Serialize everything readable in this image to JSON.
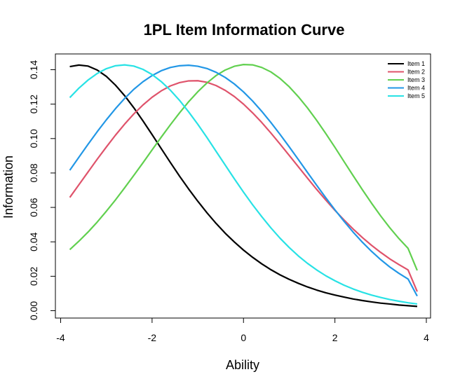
{
  "chart_data": {
    "type": "line",
    "title": "1PL Item Information Curve",
    "xlabel": "Ability",
    "ylabel": "Information",
    "xlim": [
      -4,
      4
    ],
    "ylim": [
      0,
      0.145
    ],
    "xticks": [
      -4,
      -2,
      0,
      2,
      4
    ],
    "xtick_labels": [
      "-4",
      "-2",
      "0",
      "2",
      "4"
    ],
    "yticks": [
      0,
      0.02,
      0.04,
      0.06,
      0.08,
      0.1,
      0.12,
      0.14
    ],
    "ytick_labels": [
      "0.00",
      "0.02",
      "0.04",
      "0.06",
      "0.08",
      "0.10",
      "0.12",
      "0.14"
    ],
    "grid": false,
    "legend_position": "top-right",
    "x": [
      -3.8,
      -3.6,
      -3.4,
      -3.2,
      -3.0,
      -2.8,
      -2.6,
      -2.4,
      -2.2,
      -2.0,
      -1.8,
      -1.6,
      -1.4,
      -1.2,
      -1.0,
      -0.8,
      -0.6,
      -0.4,
      -0.2,
      0.0,
      0.2,
      0.4,
      0.6,
      0.8,
      1.0,
      1.2,
      1.4,
      1.6,
      1.8,
      2.0,
      2.2,
      2.4,
      2.6,
      2.8,
      3.0,
      3.2,
      3.4,
      3.6,
      3.8
    ],
    "series": [
      {
        "name": "Item 1",
        "color": "#000000",
        "values": [
          0.1418,
          0.1427,
          0.1421,
          0.1398,
          0.1361,
          0.131,
          0.1249,
          0.1179,
          0.1103,
          0.1023,
          0.0942,
          0.0861,
          0.0782,
          0.0707,
          0.0636,
          0.0569,
          0.0507,
          0.045,
          0.0399,
          0.0352,
          0.031,
          0.0272,
          0.0238,
          0.0208,
          0.0182,
          0.0159,
          0.0138,
          0.012,
          0.0104,
          0.0091,
          0.0079,
          0.0068,
          0.0059,
          0.0051,
          0.0044,
          0.0039,
          0.0033,
          0.0029,
          0.0025
        ]
      },
      {
        "name": "Item 2",
        "color": "#DF536B",
        "values": [
          0.0658,
          0.0732,
          0.0806,
          0.088,
          0.0951,
          0.102,
          0.1084,
          0.1143,
          0.1195,
          0.124,
          0.1277,
          0.1306,
          0.1325,
          0.1335,
          0.1336,
          0.1327,
          0.1308,
          0.128,
          0.1244,
          0.12,
          0.1149,
          0.1093,
          0.1032,
          0.0968,
          0.0902,
          0.0836,
          0.077,
          0.0705,
          0.0643,
          0.0583,
          0.0527,
          0.0474,
          0.0425,
          0.038,
          0.0339,
          0.0301,
          0.0268,
          0.0237,
          0.0111
        ]
      },
      {
        "name": "Item 3",
        "color": "#61D04F",
        "values": [
          0.0355,
          0.0404,
          0.0457,
          0.0515,
          0.0578,
          0.0644,
          0.0714,
          0.0786,
          0.0859,
          0.0934,
          0.1008,
          0.108,
          0.1149,
          0.1214,
          0.1272,
          0.1323,
          0.1366,
          0.1398,
          0.142,
          0.143,
          0.1428,
          0.1413,
          0.1387,
          0.1349,
          0.1301,
          0.1243,
          0.1178,
          0.1106,
          0.1029,
          0.0949,
          0.0866,
          0.0784,
          0.0703,
          0.0625,
          0.0551,
          0.0482,
          0.0419,
          0.0362,
          0.0234
        ]
      },
      {
        "name": "Item 4",
        "color": "#2297E6",
        "values": [
          0.0816,
          0.0892,
          0.0967,
          0.104,
          0.1109,
          0.1174,
          0.1233,
          0.1286,
          0.133,
          0.1366,
          0.1394,
          0.1413,
          0.1423,
          0.1426,
          0.142,
          0.1407,
          0.1385,
          0.1355,
          0.1317,
          0.1271,
          0.1218,
          0.1158,
          0.1093,
          0.1024,
          0.0952,
          0.0878,
          0.0803,
          0.0729,
          0.0656,
          0.0586,
          0.0519,
          0.0456,
          0.0398,
          0.0345,
          0.0297,
          0.0254,
          0.0217,
          0.0184,
          0.0085
        ]
      },
      {
        "name": "Item 5",
        "color": "#28E2E5",
        "values": [
          0.1238,
          0.1293,
          0.134,
          0.1378,
          0.1406,
          0.1423,
          0.1428,
          0.1421,
          0.1402,
          0.1372,
          0.1331,
          0.1281,
          0.1222,
          0.1155,
          0.1083,
          0.1006,
          0.0926,
          0.0846,
          0.0766,
          0.0689,
          0.0615,
          0.0546,
          0.0481,
          0.0421,
          0.0367,
          0.0318,
          0.0275,
          0.0237,
          0.0203,
          0.0174,
          0.0148,
          0.0126,
          0.0107,
          0.0091,
          0.0077,
          0.0065,
          0.0055,
          0.0046,
          0.0039
        ]
      }
    ]
  }
}
